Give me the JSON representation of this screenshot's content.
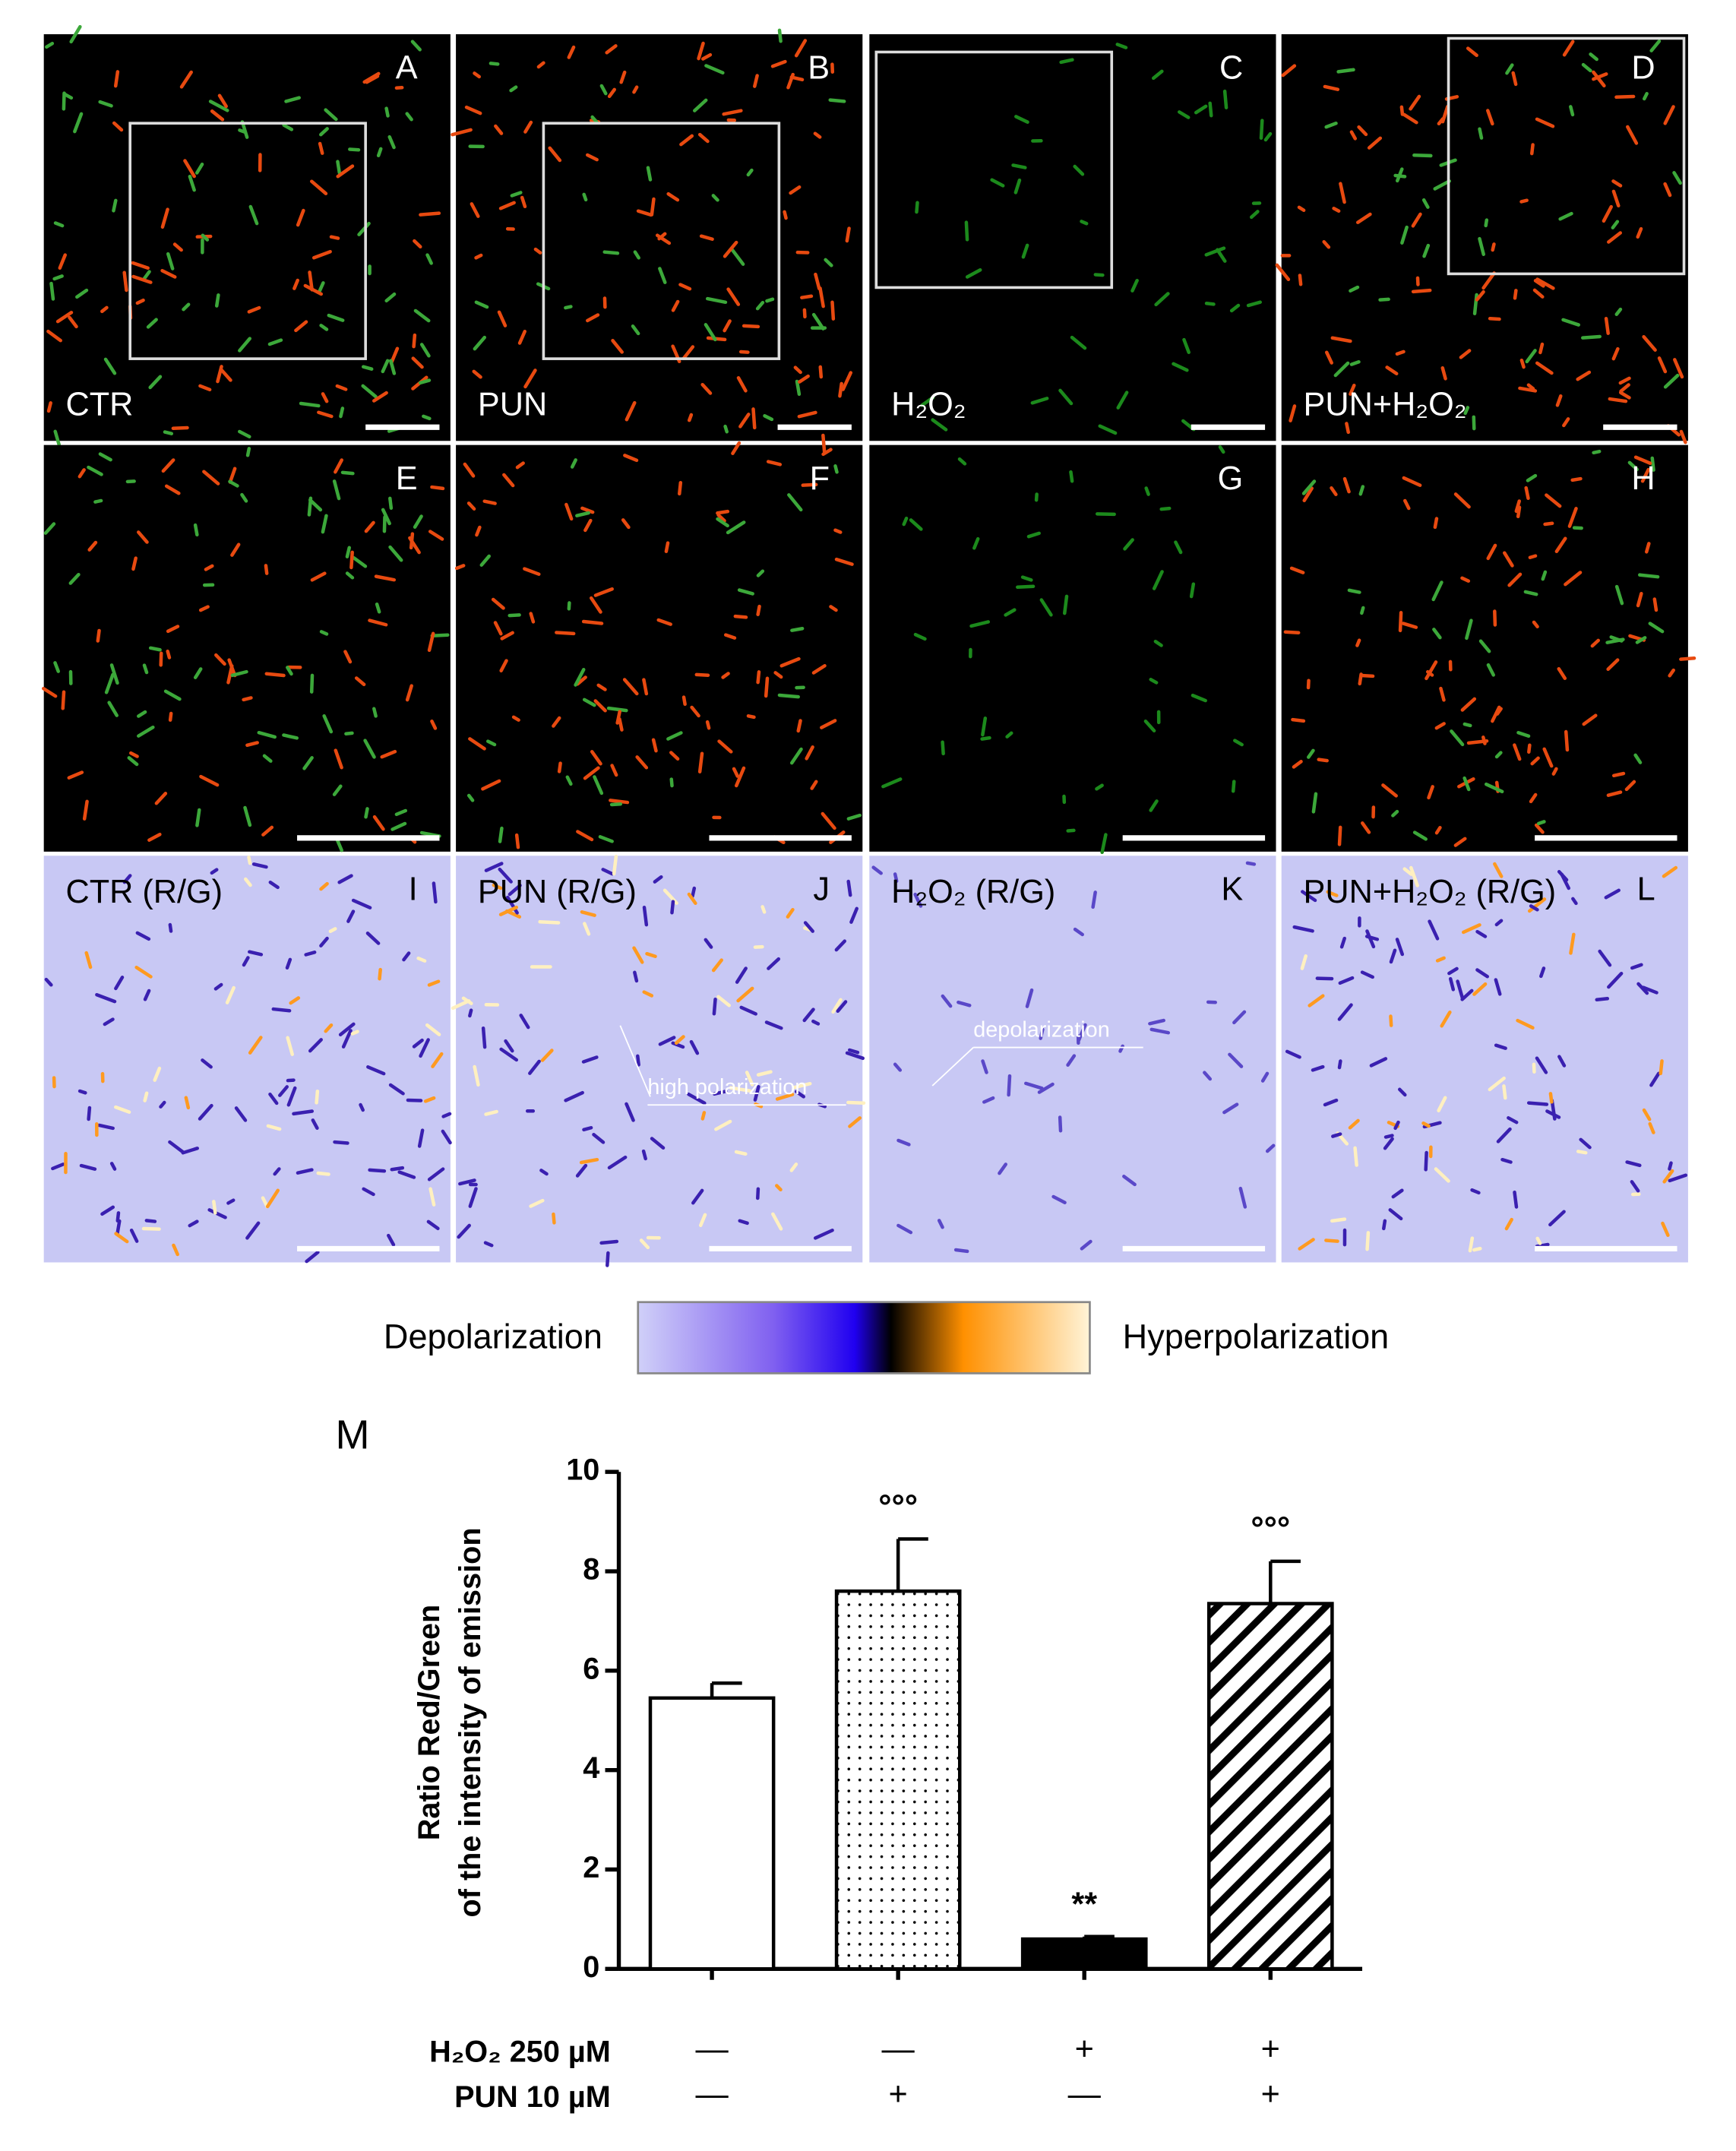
{
  "panels": [
    {
      "letter": "A",
      "label": "CTR",
      "inset": true
    },
    {
      "letter": "B",
      "label": "PUN",
      "inset": true
    },
    {
      "letter": "C",
      "label": "H₂O₂",
      "inset": true
    },
    {
      "letter": "D",
      "label": "PUN+H₂O₂",
      "inset": true
    },
    {
      "letter": "E",
      "label": null,
      "inset": false
    },
    {
      "letter": "F",
      "label": null,
      "inset": false
    },
    {
      "letter": "G",
      "label": null,
      "inset": false
    },
    {
      "letter": "H",
      "label": null,
      "inset": false
    },
    {
      "letter": "I",
      "label": "CTR (R/G)",
      "inset": false
    },
    {
      "letter": "J",
      "label": "PUN (R/G)",
      "inset": false,
      "annotation": "high polarization"
    },
    {
      "letter": "K",
      "label": "H₂O₂  (R/G)",
      "inset": false,
      "annotation": "depolarization"
    },
    {
      "letter": "L",
      "label": "PUN+H₂O₂ (R/G)",
      "inset": false
    }
  ],
  "colorbar": {
    "left_label": "Depolarization",
    "right_label": "Hyperpolarization",
    "colors": [
      "#d0d0f8",
      "#8060f0",
      "#2000f0",
      "#000000",
      "#ff9000",
      "#fff4d8"
    ]
  },
  "chart_data": {
    "type": "bar",
    "panel_letter": "M",
    "ylabel": [
      "Ratio Red/Green",
      "of the intensity of emission"
    ],
    "values": [
      5.45,
      7.6,
      0.6,
      7.35
    ],
    "errors": [
      0.3,
      1.05,
      0.05,
      0.85
    ],
    "patterns": [
      "none",
      "dots",
      "solid",
      "hatch"
    ],
    "significance": [
      null,
      "°°°",
      "**",
      "°°°"
    ],
    "ylim": [
      0,
      10
    ],
    "yticks": [
      0,
      2,
      4,
      6,
      8,
      10
    ],
    "treatments": [
      {
        "name": "H₂O₂  250 µM",
        "signs": [
          "—",
          "—",
          "+",
          "+"
        ]
      },
      {
        "name": "PUN    10 µM",
        "signs": [
          "—",
          "+",
          "—",
          "+"
        ]
      }
    ]
  }
}
